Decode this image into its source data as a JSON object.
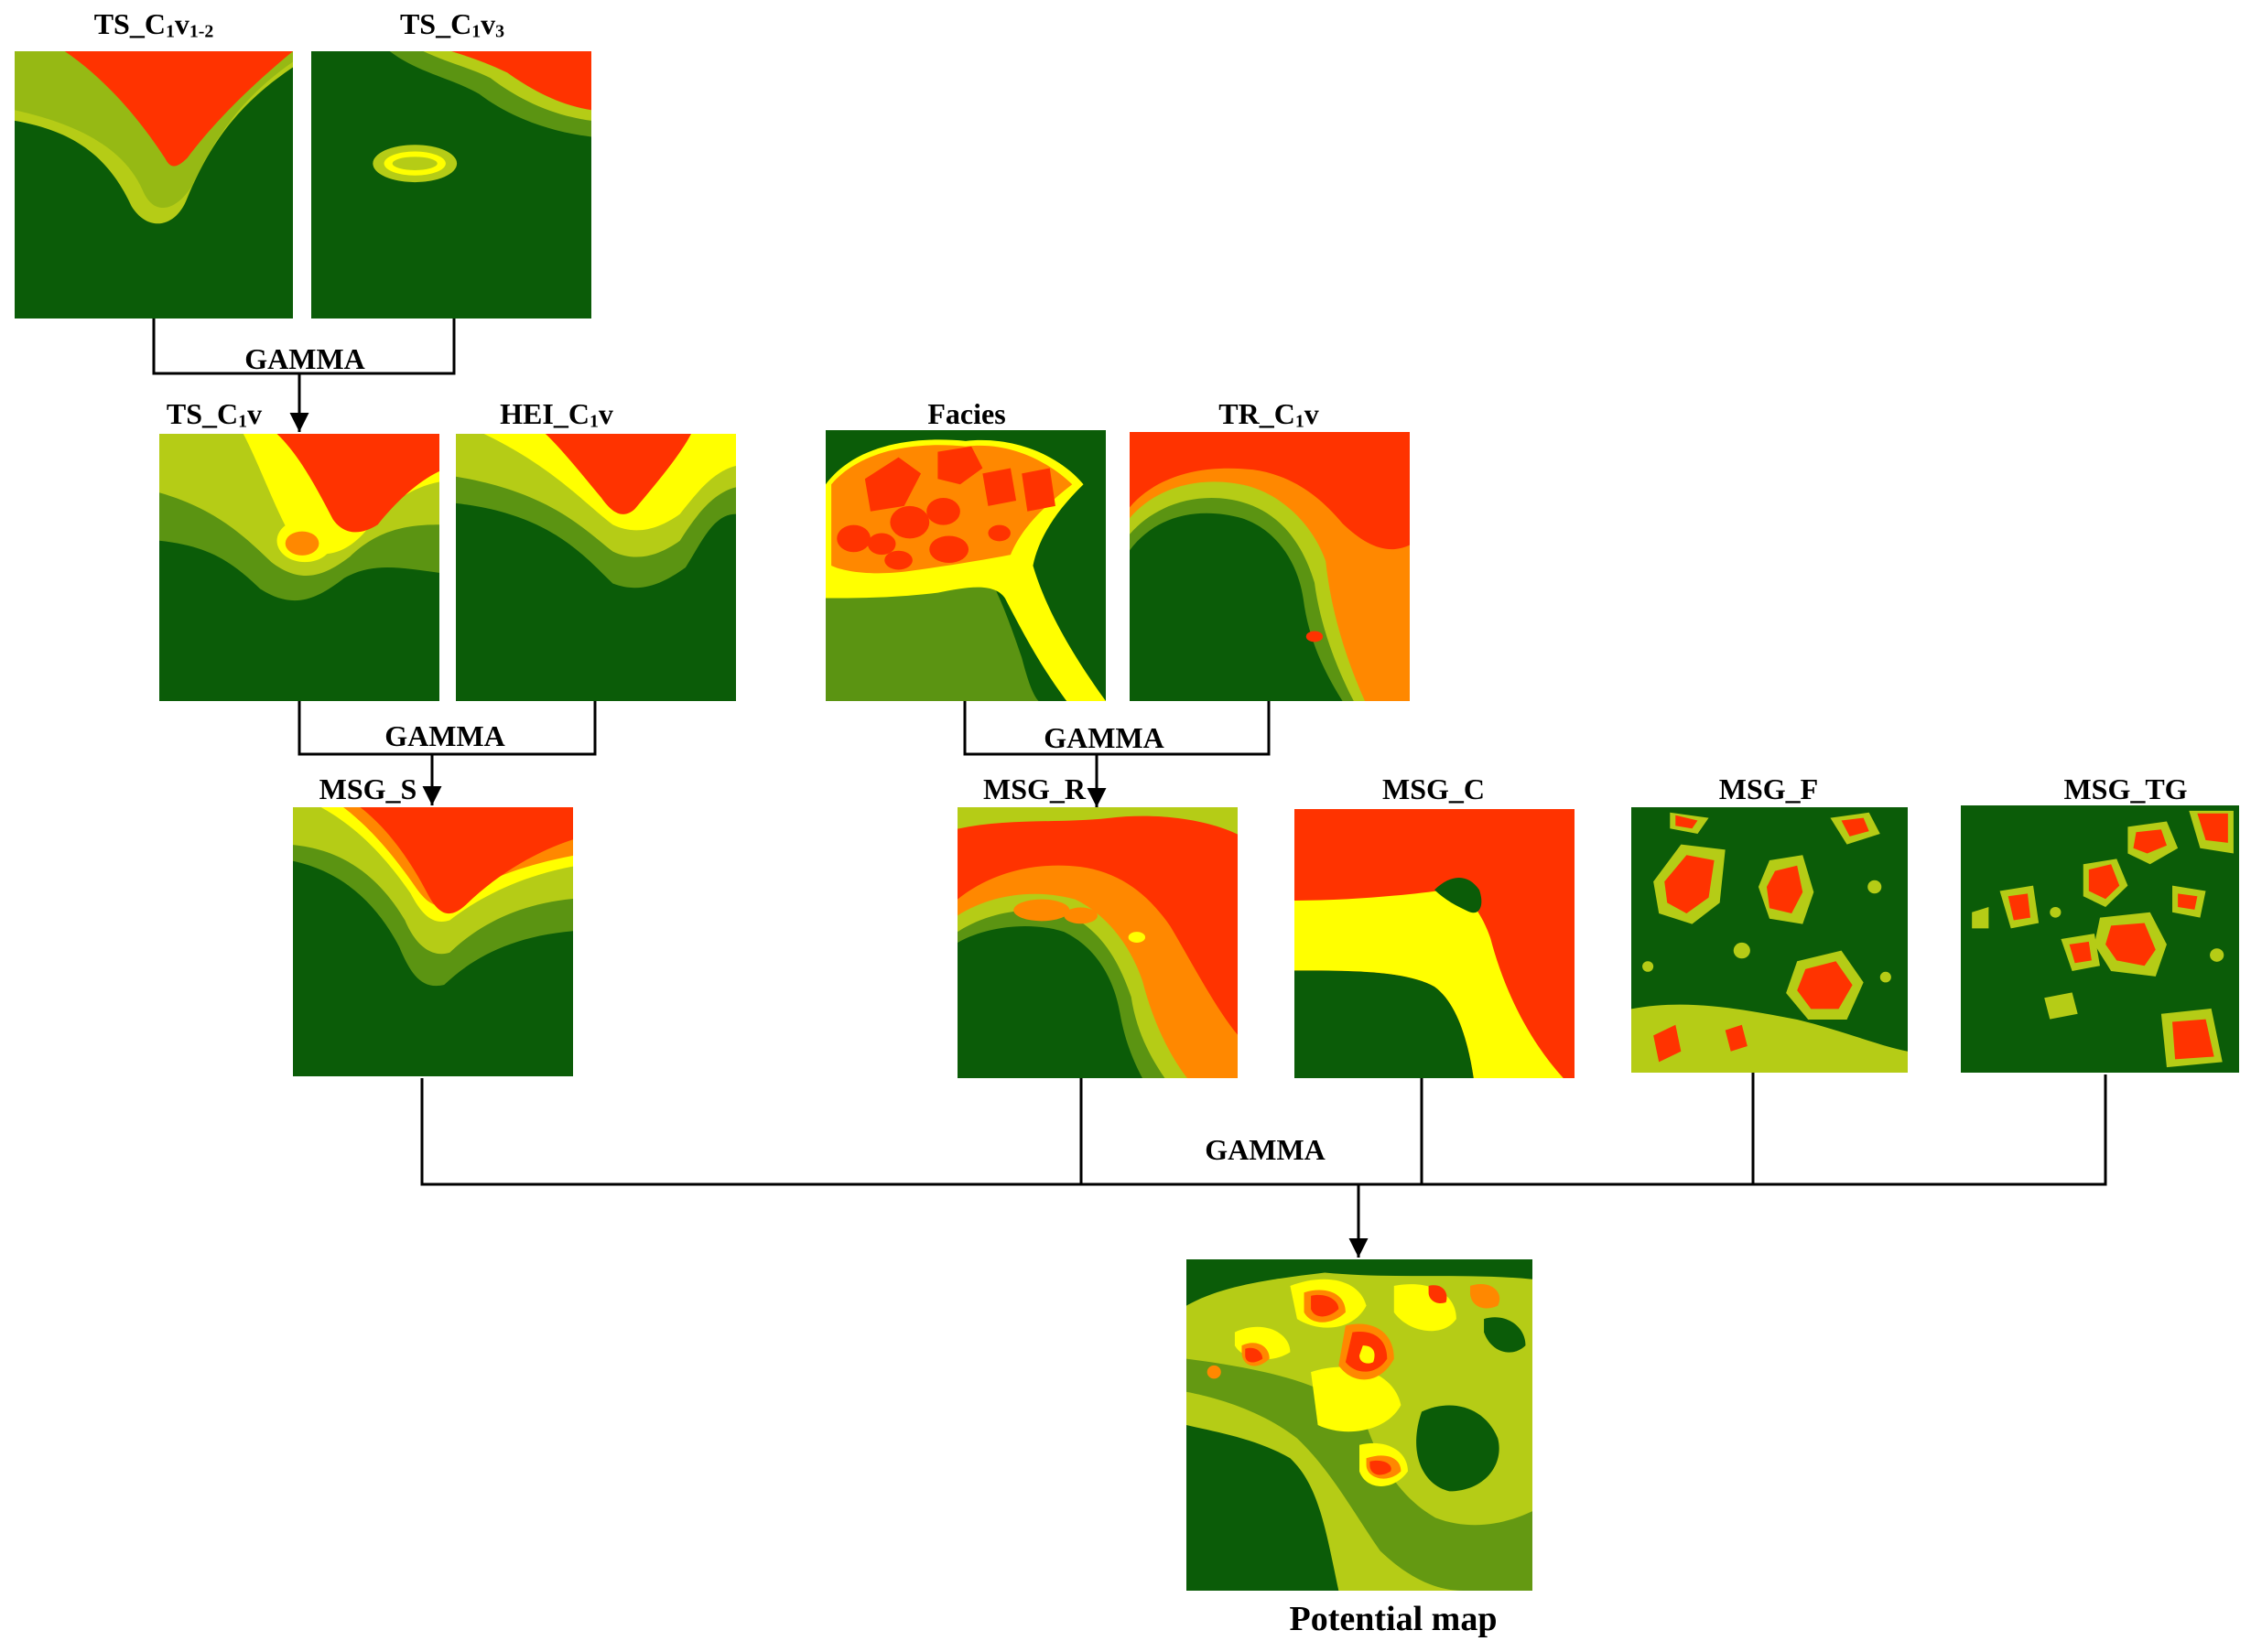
{
  "colors": {
    "dark_green": "#0b5c08",
    "mid_green": "#5b9412",
    "yellow_green": "#b5cc16",
    "yellow": "#ffff00",
    "orange": "#ff8800",
    "red": "#ff3300",
    "line": "#000000"
  },
  "maps": [
    {
      "id": "ts_c1v12",
      "title_main": "TS_C",
      "title_sub": "1",
      "title_tail": "v",
      "title_sub2": "1-2"
    },
    {
      "id": "ts_c1v3",
      "title_main": "TS_C",
      "title_sub": "1",
      "title_tail": "v",
      "title_sub2": "3"
    },
    {
      "id": "ts_c1v",
      "title_main": "TS_C",
      "title_sub": "1",
      "title_tail": "v",
      "title_sub2": ""
    },
    {
      "id": "hei_c1v",
      "title_main": "HEI_C",
      "title_sub": "1",
      "title_tail": "v",
      "title_sub2": ""
    },
    {
      "id": "facies",
      "title_main": "Facies",
      "title_sub": "",
      "title_tail": "",
      "title_sub2": ""
    },
    {
      "id": "tr_c1v",
      "title_main": "TR_C",
      "title_sub": "1",
      "title_tail": "v",
      "title_sub2": ""
    },
    {
      "id": "msg_s",
      "title_main": "MSG_S",
      "title_sub": "",
      "title_tail": "",
      "title_sub2": ""
    },
    {
      "id": "msg_r",
      "title_main": "MSG_R",
      "title_sub": "",
      "title_tail": "",
      "title_sub2": ""
    },
    {
      "id": "msg_c",
      "title_main": "MSG_C",
      "title_sub": "",
      "title_tail": "",
      "title_sub2": ""
    },
    {
      "id": "msg_f",
      "title_main": "MSG_F",
      "title_sub": "",
      "title_tail": "",
      "title_sub2": ""
    },
    {
      "id": "msg_tg",
      "title_main": "MSG_TG",
      "title_sub": "",
      "title_tail": "",
      "title_sub2": ""
    },
    {
      "id": "potential",
      "title_main": "Potential map",
      "title_sub": "",
      "title_tail": "",
      "title_sub2": ""
    }
  ],
  "operators": {
    "gamma_1": "GAMMA",
    "gamma_2": "GAMMA",
    "gamma_3": "GAMMA",
    "gamma_4": "GAMMA"
  }
}
